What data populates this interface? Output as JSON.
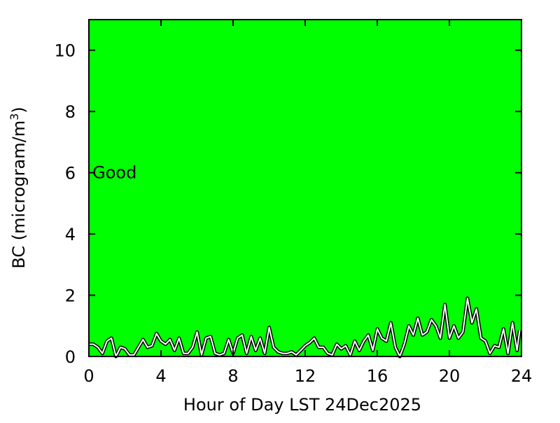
{
  "chart_data": {
    "type": "line",
    "xlabel": "Hour of Day LST 24Dec2025",
    "ylabel": "BC (microgram/m",
    "ylabel_sup": "3",
    "ylabel_close": ")",
    "xlim": [
      0,
      24
    ],
    "ylim": [
      0,
      11
    ],
    "xticks": [
      0,
      4,
      8,
      12,
      16,
      20,
      24
    ],
    "yticks": [
      0,
      2,
      4,
      6,
      8,
      10
    ],
    "grid": false,
    "background_color": "#00ff00",
    "line_color": "#ffffff",
    "line_outline_color": "#000000",
    "annotation": {
      "text": "Good",
      "x": 0.2,
      "y": 6
    },
    "series": [
      {
        "x": [
          0,
          0.25,
          0.5,
          0.75,
          1,
          1.25,
          1.5,
          1.75,
          2,
          2.25,
          2.5,
          2.75,
          3,
          3.25,
          3.5,
          3.75,
          4,
          4.25,
          4.5,
          4.75,
          5,
          5.25,
          5.5,
          5.75,
          6,
          6.25,
          6.5,
          6.75,
          7,
          7.25,
          7.5,
          7.75,
          8,
          8.25,
          8.5,
          8.75,
          9,
          9.25,
          9.5,
          9.75,
          10,
          10.25,
          10.5,
          10.75,
          11,
          11.25,
          11.5,
          11.75,
          12,
          12.25,
          12.5,
          12.75,
          13,
          13.25,
          13.5,
          13.75,
          14,
          14.25,
          14.5,
          14.75,
          15,
          15.25,
          15.5,
          15.75,
          16,
          16.25,
          16.5,
          16.75,
          17,
          17.25,
          17.5,
          17.75,
          18,
          18.25,
          18.5,
          18.75,
          19,
          19.25,
          19.5,
          19.75,
          20,
          20.25,
          20.5,
          20.75,
          21,
          21.25,
          21.5,
          21.75,
          22,
          22.25,
          22.5,
          22.75,
          23,
          23.25,
          23.5,
          23.75,
          23.9
        ],
        "y": [
          0.4,
          0.4,
          0.3,
          0.1,
          0.5,
          0.6,
          0.0,
          0.3,
          0.25,
          0.05,
          0.05,
          0.3,
          0.55,
          0.3,
          0.35,
          0.75,
          0.5,
          0.4,
          0.55,
          0.2,
          0.6,
          0.1,
          0.1,
          0.3,
          0.8,
          0.05,
          0.6,
          0.65,
          0.1,
          0.05,
          0.1,
          0.55,
          0.1,
          0.6,
          0.7,
          0.1,
          0.65,
          0.2,
          0.6,
          0.1,
          0.95,
          0.3,
          0.15,
          0.1,
          0.1,
          0.15,
          0.05,
          0.2,
          0.35,
          0.45,
          0.6,
          0.3,
          0.3,
          0.1,
          0.05,
          0.4,
          0.25,
          0.35,
          0.05,
          0.5,
          0.2,
          0.5,
          0.7,
          0.2,
          0.9,
          0.6,
          0.5,
          1.1,
          0.3,
          0.0,
          0.4,
          1.0,
          0.7,
          1.25,
          0.7,
          0.8,
          1.2,
          1.0,
          0.6,
          1.7,
          0.6,
          1.0,
          0.6,
          0.8,
          1.9,
          1.1,
          1.55,
          0.6,
          0.5,
          0.1,
          0.35,
          0.3,
          0.9,
          0.1,
          1.1,
          0.2,
          0.85
        ]
      }
    ]
  }
}
